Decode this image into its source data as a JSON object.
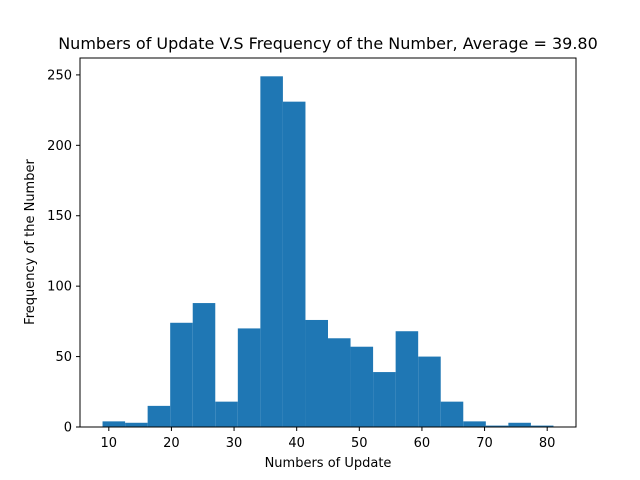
{
  "chart_data": {
    "type": "bar",
    "title": "Numbers of Update V.S Frequency of the Number, Average = 39.80",
    "xlabel": "Numbers of Update",
    "ylabel": "Frequency of the Number",
    "xlim": [
      5.4,
      84.6
    ],
    "ylim": [
      0,
      262
    ],
    "xticks": [
      10,
      20,
      30,
      40,
      50,
      60,
      70,
      80
    ],
    "yticks": [
      0,
      50,
      100,
      150,
      200,
      250
    ],
    "bin_edges": [
      9,
      12.6,
      16.2,
      19.8,
      23.4,
      27,
      30.6,
      34.2,
      37.8,
      41.4,
      45,
      48.6,
      52.2,
      55.8,
      59.4,
      63,
      66.6,
      70.2,
      73.8,
      77.4,
      81
    ],
    "values": [
      4,
      3,
      15,
      74,
      88,
      18,
      70,
      249,
      231,
      76,
      63,
      57,
      39,
      68,
      50,
      18,
      4,
      1,
      3,
      1
    ],
    "bar_color": "#1f77b4",
    "grid": false
  }
}
